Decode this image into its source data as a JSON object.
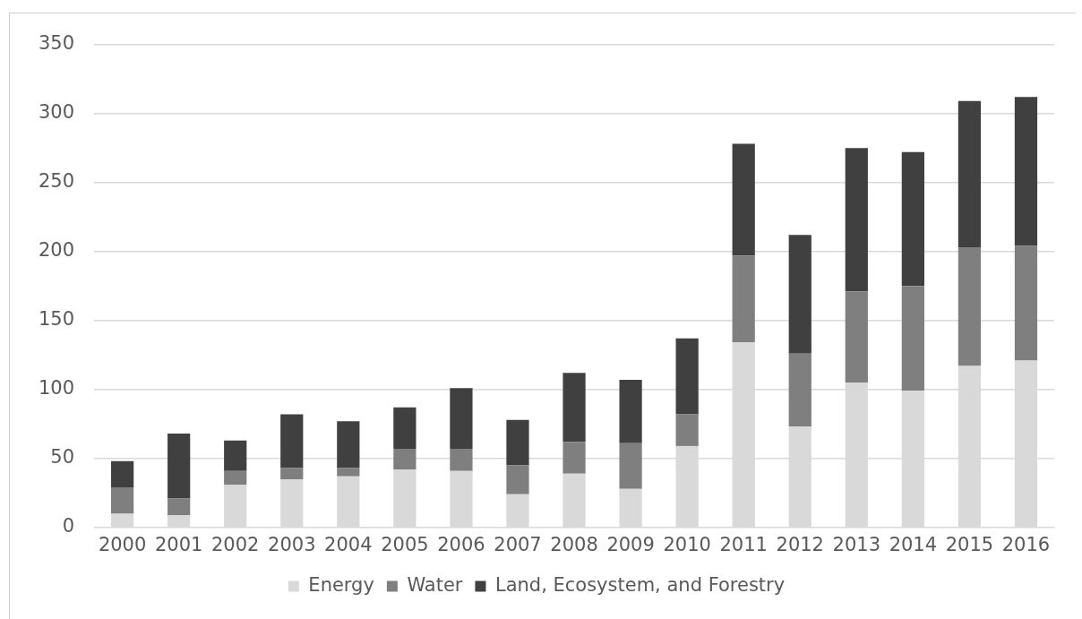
{
  "chart_data": {
    "type": "bar",
    "stacked": true,
    "categories": [
      "2000",
      "2001",
      "2002",
      "2003",
      "2004",
      "2005",
      "2006",
      "2007",
      "2008",
      "2009",
      "2010",
      "2011",
      "2012",
      "2013",
      "2014",
      "2015",
      "2016"
    ],
    "series": [
      {
        "name": "Energy",
        "color": "#d9d9d9",
        "values": [
          10,
          9,
          31,
          35,
          37,
          42,
          41,
          24,
          39,
          28,
          59,
          134,
          73,
          105,
          99,
          117,
          121
        ]
      },
      {
        "name": "Water",
        "color": "#7f7f7f",
        "values": [
          19,
          12,
          10,
          8,
          6,
          15,
          16,
          21,
          23,
          33,
          23,
          63,
          53,
          66,
          76,
          86,
          83
        ]
      },
      {
        "name": "Land, Ecosystem, and Forestry",
        "color": "#404040",
        "values": [
          19,
          47,
          22,
          39,
          34,
          30,
          44,
          33,
          50,
          46,
          55,
          81,
          86,
          104,
          97,
          106,
          108
        ]
      }
    ],
    "ylim": [
      0,
      350
    ],
    "yticks": [
      0,
      50,
      100,
      150,
      200,
      250,
      300,
      350
    ],
    "grid": "y",
    "legend": "bottom"
  }
}
